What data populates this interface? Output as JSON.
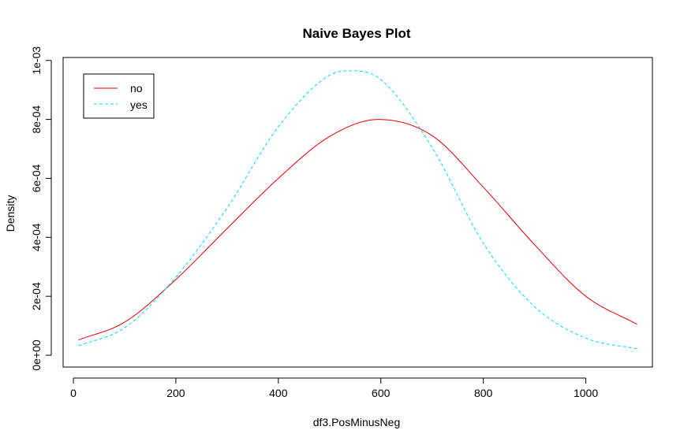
{
  "chart_data": {
    "type": "line",
    "title": "Naive Bayes Plot",
    "xlabel": "df3.PosMinusNeg",
    "ylabel": "Density",
    "xlim": [
      -20,
      1130
    ],
    "ylim": [
      -4e-05,
      0.00101
    ],
    "x_ticks": [
      0,
      200,
      400,
      600,
      800,
      1000
    ],
    "x_tick_labels": [
      "0",
      "200",
      "400",
      "600",
      "800",
      "1000"
    ],
    "y_ticks": [
      0,
      0.0002,
      0.0004,
      0.0006,
      0.0008,
      0.001
    ],
    "y_tick_labels": [
      "0e+00",
      "2e-04",
      "4e-04",
      "6e-04",
      "8e-04",
      "1e-03"
    ],
    "grid": false,
    "legend_position": "top-left",
    "series": [
      {
        "name": "no",
        "color": "#e00000",
        "dash": "solid",
        "x": [
          10,
          100,
          200,
          300,
          400,
          500,
          595,
          700,
          800,
          900,
          1000,
          1100
        ],
        "values": [
          5.2e-05,
          0.000112,
          0.000257,
          0.00043,
          0.0006,
          0.000742,
          0.0008,
          0.000745,
          0.00057,
          0.000375,
          0.0002,
          0.000105
        ]
      },
      {
        "name": "yes",
        "color": "#00d8f0",
        "dash": "dashed",
        "x": [
          10,
          100,
          200,
          300,
          400,
          500,
          545,
          600,
          700,
          800,
          900,
          1000,
          1100
        ],
        "values": [
          3.2e-05,
          9.3e-05,
          0.000265,
          0.0005,
          0.000775,
          0.00095,
          0.000965,
          0.000935,
          0.000705,
          0.00038,
          0.000165,
          5.8e-05,
          2.2e-05
        ]
      }
    ]
  }
}
